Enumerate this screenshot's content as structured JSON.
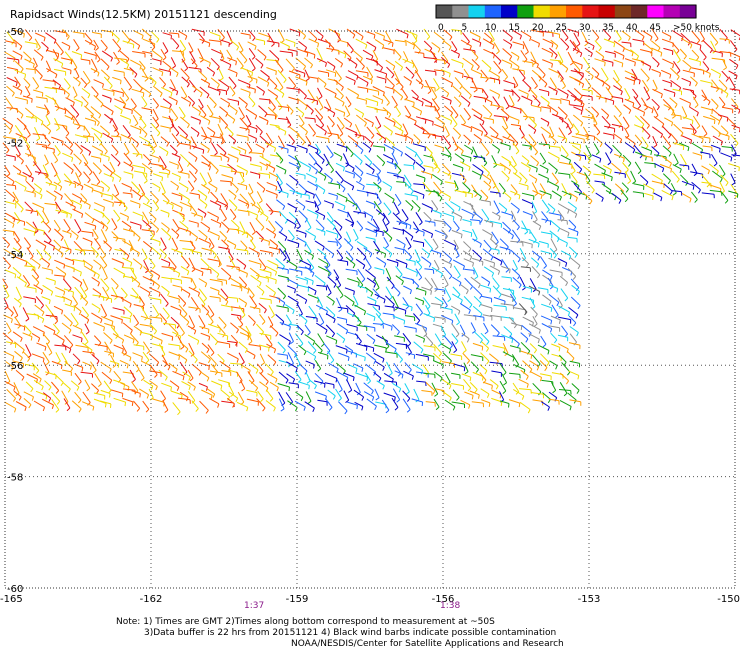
{
  "title": "Rapidsact Winds(12.5KM) 20151121 descending",
  "color_scale": {
    "labels": [
      "0",
      "5",
      "10",
      "15",
      "20",
      "25",
      "30",
      "35",
      "40",
      "45",
      ">50 knots"
    ],
    "colors": [
      "#555555",
      "#909090",
      "#14d2f0",
      "#1e64ff",
      "#0000c8",
      "#10a010",
      "#f0dc00",
      "#ffa000",
      "#ff5a00",
      "#e61414",
      "#c80000",
      "#8c4614",
      "#6e2828",
      "#ff00ff",
      "#b400b4",
      "#780096"
    ]
  },
  "chart_data": {
    "type": "scatter",
    "title": "Rapidsact Winds(12.5KM) 20151121 descending",
    "x_ticks": [
      "-165",
      "-162",
      "-159",
      "-156",
      "-153",
      "-150"
    ],
    "y_ticks": [
      "-50",
      "-52",
      "-54",
      "-56",
      "-58",
      "-60"
    ],
    "xlim": [
      -165,
      -150
    ],
    "ylim": [
      -60,
      -50
    ],
    "grid": true,
    "swath_regions": [
      {
        "name": "main",
        "lon": [
          -165,
          -153.3
        ],
        "lat": [
          -56.8,
          -50
        ]
      },
      {
        "name": "northeast",
        "lon": [
          -153.3,
          -150
        ],
        "lat": [
          -53,
          -50
        ]
      }
    ],
    "wind_zones": [
      {
        "lon_min": -165,
        "lon_max": -159.5,
        "lat_min": -56.8,
        "lat_max": -50,
        "speed_knots": 24
      },
      {
        "lon_min": -159.5,
        "lon_max": -156.5,
        "lat_min": -56.8,
        "lat_max": -52,
        "speed_knots": 12
      },
      {
        "lon_min": -156.5,
        "lon_max": -153.3,
        "lat_min": -55.5,
        "lat_max": -53,
        "speed_knots": 8
      },
      {
        "lon_min": -162,
        "lon_max": -150,
        "lat_min": -52,
        "lat_max": -50,
        "speed_knots": 26
      },
      {
        "lon_min": -153.3,
        "lon_max": -150,
        "lat_min": -53,
        "lat_max": -52,
        "speed_knots": 18
      }
    ]
  },
  "pass_times": [
    "1:37",
    "1:38"
  ],
  "notes": [
    "Note: 1) Times are GMT 2)Times along bottom correspond to measurement at ~50S",
    "3)Data buffer is 22 hrs from 20151121 4) Black wind barbs indicate possible contamination",
    "NOAA/NESDIS/Center for Satellite Applications and Research"
  ]
}
